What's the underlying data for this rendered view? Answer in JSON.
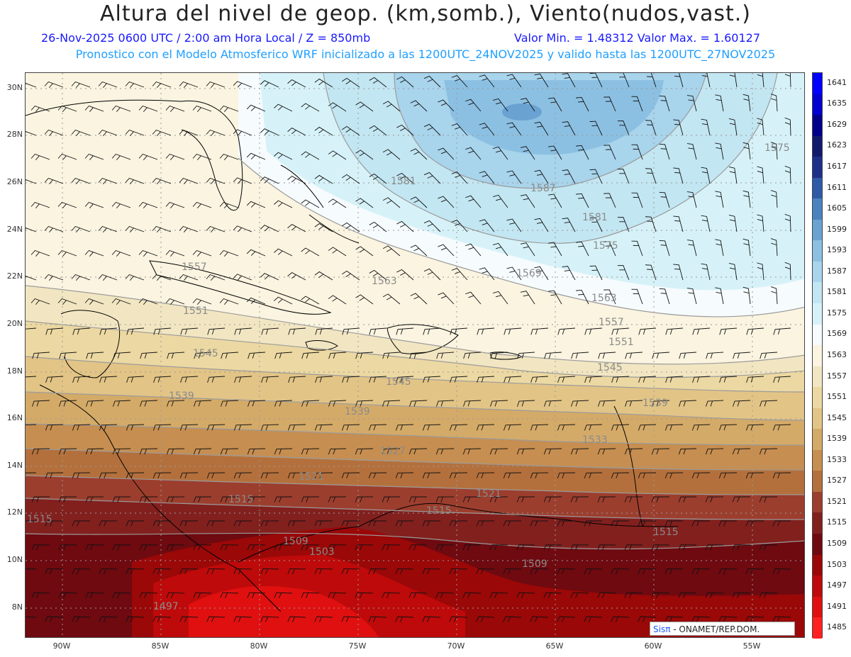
{
  "header": {
    "title": "Altura del nivel de geop. (km,somb.), Viento(nudos,vast.)",
    "date_line": "26-Nov-2025  0600 UTC / 2:00 am Hora Local / Z = 850mb",
    "minmax_line": "Valor Min. = 1.48312  Valor Max. = 1.60127",
    "model_line": "Pronostico con el Modelo Atmosferico WRF inicializado a las 1200UTC_24NOV2025 y valido hasta las  1200UTC_27NOV2025"
  },
  "axes": {
    "lat_labels": [
      "30N",
      "28N",
      "26N",
      "24N",
      "22N",
      "20N",
      "18N",
      "16N",
      "14N",
      "12N",
      "10N",
      "8N"
    ],
    "lon_labels": [
      "90W",
      "85W",
      "80W",
      "75W",
      "70W",
      "65W",
      "60W",
      "55W"
    ]
  },
  "colorbar": {
    "levels": [
      "1641",
      "1635",
      "1629",
      "1623",
      "1617",
      "1611",
      "1605",
      "1599",
      "1593",
      "1587",
      "1581",
      "1575",
      "1569",
      "1563",
      "1557",
      "1551",
      "1545",
      "1539",
      "1533",
      "1527",
      "1521",
      "1515",
      "1509",
      "1503",
      "1497",
      "1491",
      "1485"
    ],
    "colors": [
      "#0000ff",
      "#0000d0",
      "#00008a",
      "#121a6e",
      "#1e2f8a",
      "#2e5aa8",
      "#4a82c0",
      "#6aa2d2",
      "#8cc0e2",
      "#a8d4ec",
      "#c2e6f2",
      "#d6f2f8",
      "#f6fbfd",
      "#faf4e0",
      "#f2e6c2",
      "#ecd8a2",
      "#e2c486",
      "#d4aa68",
      "#c68e50",
      "#b4703c",
      "#9c3e2e",
      "#82201e",
      "#6e0a10",
      "#9a0808",
      "#be0a0a",
      "#e01010",
      "#ff2020"
    ]
  },
  "contour_labels": [
    "1581",
    "1587",
    "1581",
    "1575",
    "1575",
    "1569",
    "1563",
    "1563",
    "1557",
    "1551",
    "1551",
    "1545",
    "1545",
    "1539",
    "1539",
    "1533",
    "1527",
    "1521",
    "1521",
    "1515",
    "1515",
    "1509",
    "1509",
    "1503",
    "1497",
    "1515",
    "1515",
    "1557",
    "1545",
    "1539"
  ],
  "credit": {
    "logo": "Sisπ",
    "text": " - ONAMET/REP.DOM."
  }
}
